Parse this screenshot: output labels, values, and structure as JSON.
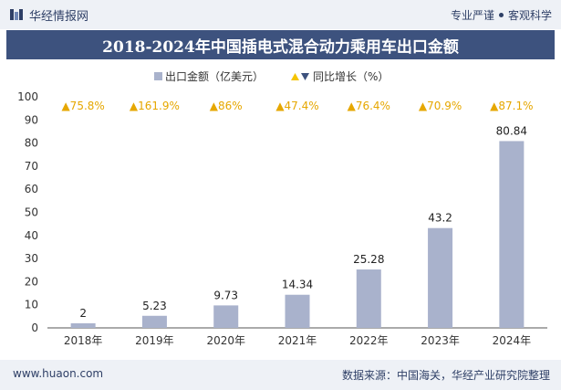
{
  "header": {
    "brand": "华经情报网",
    "slogan_left": "专业严谨",
    "slogan_right": "客观科学",
    "logo_icon": "huajing-logo-icon"
  },
  "title": "2018-2024年中国插电式混合动力乘用车出口金额",
  "footer": {
    "url": "www.huaon.com",
    "source": "数据来源：中国海关，华经产业研究院整理"
  },
  "colors": {
    "bar": "#a9b2cc",
    "growth_marker": "#f5c400",
    "growth_text": "#e6a700",
    "title_bg": "#3d527e"
  },
  "chart_data": {
    "type": "bar",
    "categories": [
      "2018年",
      "2019年",
      "2020年",
      "2021年",
      "2022年",
      "2023年",
      "2024年"
    ],
    "series": [
      {
        "name": "出口金额（亿美元）",
        "values": [
          2,
          5.23,
          9.73,
          14.34,
          25.28,
          43.2,
          80.84
        ]
      }
    ],
    "growth": {
      "name": "同比增长（%）",
      "labels": [
        "▲75.8%",
        "▲161.9%",
        "▲86%",
        "▲47.4%",
        "▲76.4%",
        "▲70.9%",
        "▲87.1%"
      ]
    },
    "data_labels": [
      "2",
      "5.23",
      "9.73",
      "14.34",
      "25.28",
      "43.2",
      "80.84"
    ],
    "y_ticks": [
      "0",
      "10",
      "20",
      "30",
      "40",
      "50",
      "60",
      "70",
      "80",
      "90",
      "100"
    ],
    "ylim": [
      0,
      100
    ],
    "xlabel": "",
    "ylabel": "",
    "legend_position": "top-center",
    "grid": false
  }
}
